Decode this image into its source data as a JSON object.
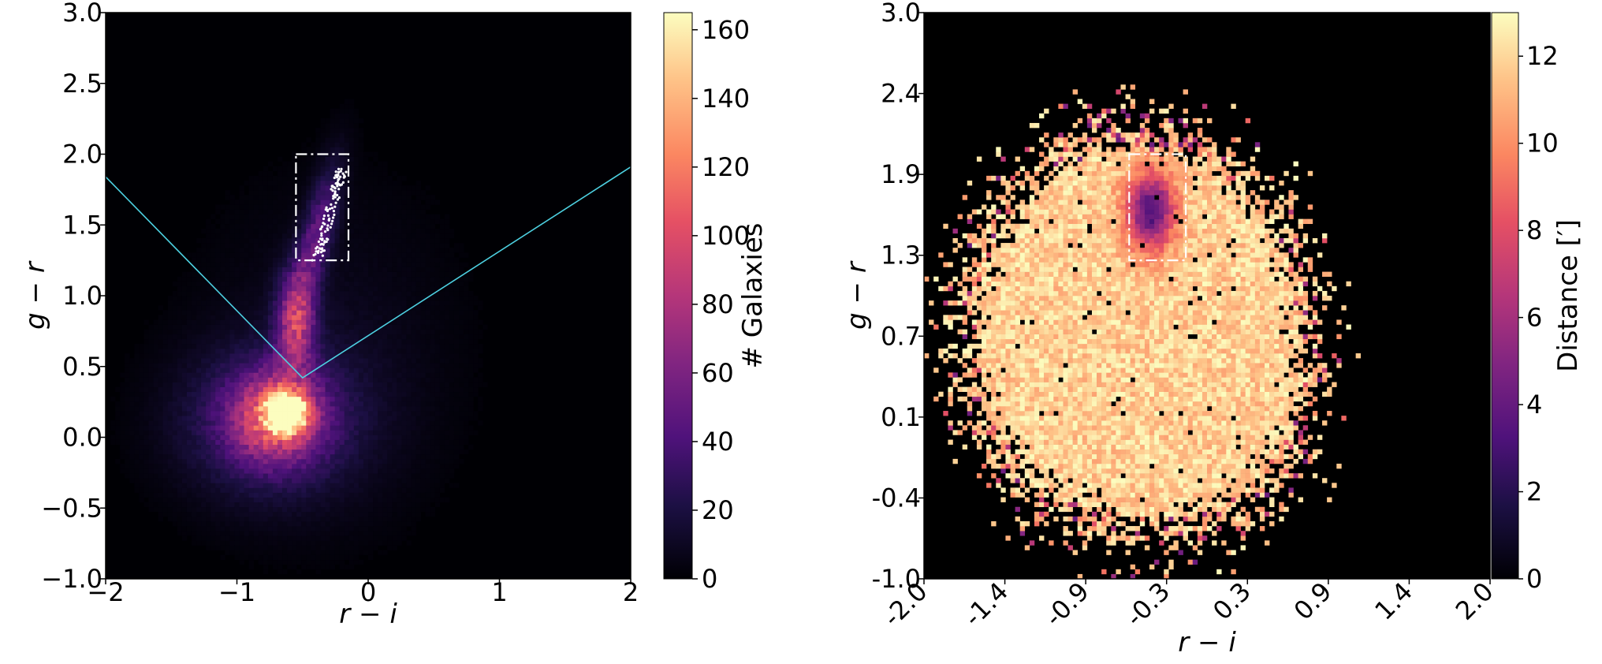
{
  "chart_data": [
    {
      "type": "heatmap",
      "xlabel": "r − i",
      "ylabel": "g − r",
      "xlim": [
        -2,
        2
      ],
      "ylim": [
        -1,
        3
      ],
      "x_ticks": [
        "−2",
        "−1",
        "0",
        "1",
        "2"
      ],
      "y_ticks": [
        "−1.0",
        "−0.5",
        "0.0",
        "0.5",
        "1.0",
        "1.5",
        "2.0",
        "2.5",
        "3.0"
      ],
      "colorbar": {
        "label": "# Galaxies",
        "range": [
          0,
          165
        ],
        "ticks": [
          "0",
          "20",
          "40",
          "60",
          "80",
          "100",
          "120",
          "140",
          "160"
        ],
        "colormap": "magma"
      },
      "selection_box": {
        "x": [
          -0.55,
          -0.15
        ],
        "y": [
          1.25,
          2.0
        ],
        "style": "dash-dot",
        "color": "#ffffff"
      },
      "selection_wedge": {
        "color": "#4dd0e1",
        "vertex": [
          -0.5,
          0.42
        ],
        "left_arm_end": [
          -2.0,
          1.84
        ],
        "right_arm_end": [
          2.0,
          1.91
        ]
      },
      "density_peaks": [
        {
          "x": -0.62,
          "y": 0.18,
          "peak": 165
        },
        {
          "x": -0.55,
          "y": 0.8,
          "peak": 95
        },
        {
          "x": -0.35,
          "y": 1.6,
          "peak": 60
        }
      ],
      "overlay_points": {
        "color": "#ffffff",
        "x_range": [
          -0.45,
          -0.2
        ],
        "y_range": [
          1.25,
          1.9
        ]
      }
    },
    {
      "type": "heatmap",
      "xlabel": "r − i",
      "ylabel": "g − r",
      "xlim": [
        -2.0,
        2.0
      ],
      "ylim": [
        -1.0,
        3.0
      ],
      "x_ticks": [
        "-2.0",
        "-1.4",
        "-0.9",
        "-0.3",
        "0.3",
        "0.9",
        "1.4",
        "2.0"
      ],
      "y_ticks": [
        "-1.0",
        "-0.4",
        "0.1",
        "0.7",
        "1.3",
        "1.9",
        "2.4",
        "3.0"
      ],
      "colorbar": {
        "label": "Distance  [′]",
        "range": [
          0,
          13
        ],
        "ticks": [
          "0",
          "2",
          "4",
          "6",
          "8",
          "10",
          "12"
        ],
        "colormap": "magma"
      },
      "selection_box": {
        "x": [
          -0.55,
          -0.15
        ],
        "y": [
          1.25,
          2.0
        ],
        "style": "dash-dot",
        "color": "#ffffff"
      },
      "low_distance_region": {
        "x": -0.4,
        "y": 1.6,
        "min_distance": 3
      },
      "typical_distance": 11
    }
  ],
  "colors": {
    "background": "#000004",
    "figure": "#ffffff"
  }
}
